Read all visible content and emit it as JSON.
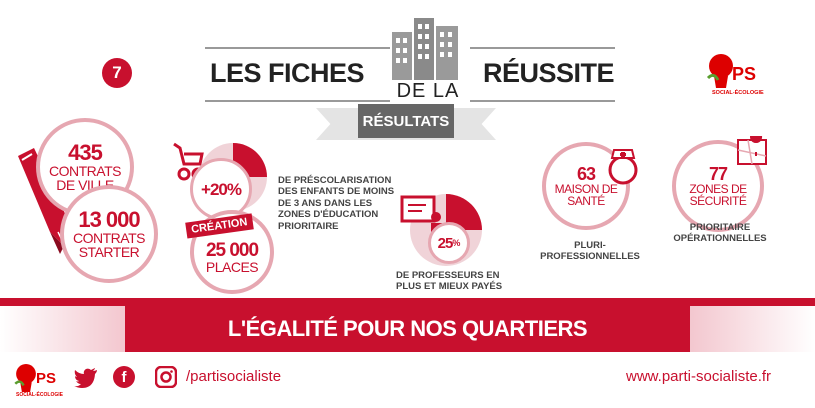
{
  "header": {
    "number": "7",
    "title_left": "LES FICHES",
    "title_right": "RÉUSSITE",
    "de_la": "DE LA",
    "resultats": "RÉSULTATS",
    "logo_ps": "PS",
    "logo_sub": "SOCIAL-ÉCOLOGIE"
  },
  "stats": {
    "contrats_ville": {
      "num": "435",
      "txt": "CONTRATS DE VILLE"
    },
    "contrats_starter": {
      "num": "13 000",
      "txt": "CONTRATS STARTER"
    },
    "prescolarisation": {
      "num": "+20%",
      "caption": "DE PRÉSCOLARISATION DES ENFANTS DE MOINS DE 3 ANS DANS LES ZONES D'ÉDUCATION PRIORITAIRE"
    },
    "creation": {
      "label": "CRÉATION",
      "num": "25 000",
      "txt": "PLACES"
    },
    "professeurs": {
      "num": "25",
      "unit": "%",
      "caption": "DE PROFESSEURS EN PLUS ET MIEUX PAYÉS"
    },
    "maison_sante": {
      "num": "63",
      "txt": "MAISON DE SANTÉ",
      "caption": "PLURI-PROFESSIONNELLES"
    },
    "zones_securite": {
      "num": "77",
      "txt": "ZONES DE SÉCURITÉ",
      "caption": "PRIORITAIRE OPÉRATIONNELLES"
    }
  },
  "banner": "L'ÉGALITÉ POUR NOS QUARTIERS",
  "footer": {
    "logo_ps": "PS",
    "logo_sub": "SOCIAL-ÉCOLOGIE",
    "handle": "/partisocialiste",
    "website": "www.parti-socialiste.fr"
  },
  "colors": {
    "accent": "#c8102e",
    "ring": "#e6a7b1",
    "grey": "#555555"
  }
}
